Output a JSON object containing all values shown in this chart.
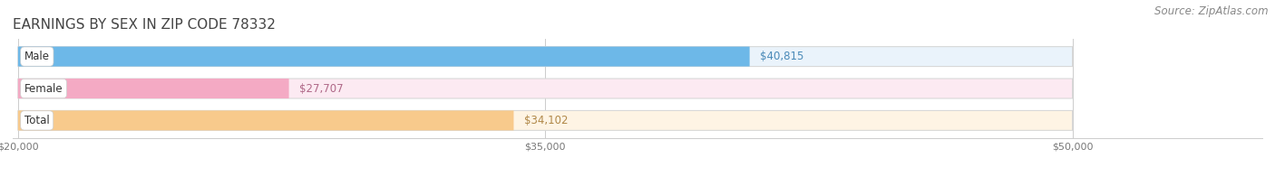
{
  "title": "EARNINGS BY SEX IN ZIP CODE 78332",
  "source": "Source: ZipAtlas.com",
  "categories": [
    "Male",
    "Female",
    "Total"
  ],
  "values": [
    40815,
    27707,
    34102
  ],
  "labels": [
    "$40,815",
    "$27,707",
    "$34,102"
  ],
  "bar_colors": [
    "#6db8e8",
    "#f4aac4",
    "#f8ca8c"
  ],
  "bar_bg_colors": [
    "#eaf3fb",
    "#fceaf2",
    "#fef4e4"
  ],
  "label_colors": [
    "#4a8ab8",
    "#b06888",
    "#b08848"
  ],
  "xmin": 20000,
  "xmax": 50000,
  "xticks": [
    20000,
    35000,
    50000
  ],
  "xticklabels": [
    "$20,000",
    "$35,000",
    "$50,000"
  ],
  "title_fontsize": 11,
  "source_fontsize": 8.5,
  "bar_label_fontsize": 8.5,
  "category_fontsize": 8.5,
  "background_color": "#ffffff"
}
